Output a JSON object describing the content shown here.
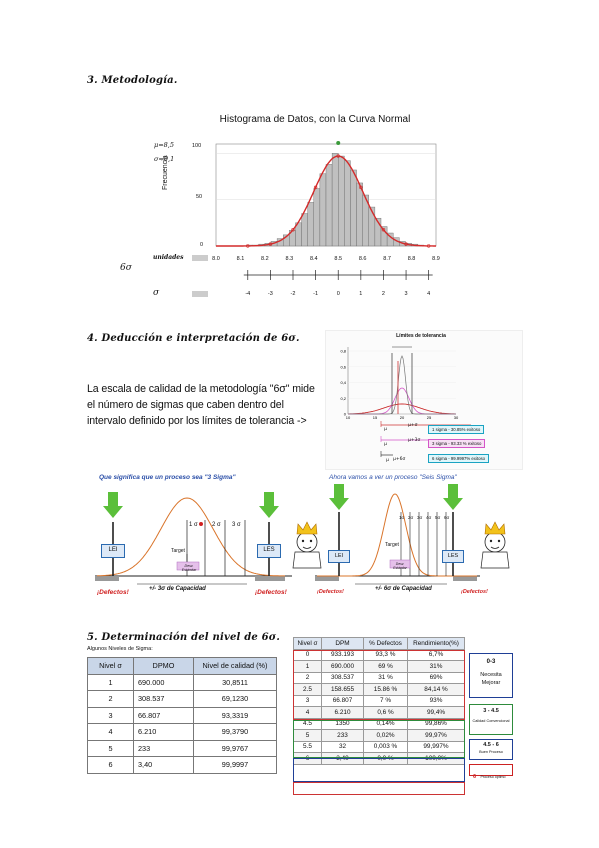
{
  "section3": {
    "title": "3. Metodología."
  },
  "histogram": {
    "title": "Histograma de Datos, con la Curva Normal",
    "mu": "μ=8,5",
    "sigma": "σ=0,1",
    "ylabel": "Frecuencia",
    "yticks": [
      "100",
      "50",
      "0"
    ],
    "units_label": "unidades",
    "xticks": [
      "8.0",
      "8.1",
      "8.2",
      "8.3",
      "8.4",
      "8.5",
      "8.6",
      "8.7",
      "8.8",
      "8.9"
    ],
    "six_sigma_label": "6σ",
    "sigma_label": "σ",
    "sigma_ticks": [
      "-4",
      "-3",
      "-2",
      "-1",
      "0",
      "1",
      "2",
      "3",
      "4"
    ],
    "bar_color": "#c0c0c0",
    "curve_color": "#d42a2a"
  },
  "chart_data": {
    "type": "bar",
    "title": "Histograma de Datos, con la Curva Normal",
    "xlabel": "unidades",
    "ylabel": "Frecuencia",
    "ylim": [
      0,
      110
    ],
    "xlim": [
      8.0,
      8.9
    ],
    "bin_width": 0.025,
    "bin_starts": [
      8.125,
      8.15,
      8.175,
      8.2,
      8.225,
      8.25,
      8.275,
      8.3,
      8.325,
      8.35,
      8.375,
      8.4,
      8.425,
      8.45,
      8.475,
      8.5,
      8.525,
      8.55,
      8.575,
      8.6,
      8.625,
      8.65,
      8.675,
      8.7,
      8.725,
      8.75,
      8.775,
      8.8,
      8.825
    ],
    "values": [
      1,
      1,
      2,
      3,
      5,
      8,
      12,
      17,
      25,
      35,
      47,
      62,
      78,
      88,
      100,
      97,
      92,
      82,
      68,
      55,
      42,
      30,
      21,
      14,
      9,
      5,
      3,
      2,
      1
    ],
    "curve": {
      "name": "Curva Normal",
      "mean": 8.5,
      "sd": 0.1,
      "peak": 97
    }
  },
  "section4": {
    "title": "4. Deducción e interpretación de 6σ.",
    "paragraph": [
      "La escala de calidad de la metodología \"6σ\" mide",
      "el número de sigmas que caben dentro del",
      "intervalo definido por los límites de tolerancia ->"
    ]
  },
  "tolerance_chart": {
    "title": "Límites de tolerancia",
    "yticks": [
      "0,8",
      "0,6",
      "0,4",
      "0,2",
      "0"
    ],
    "xticks": [
      "10",
      "15",
      "20",
      "25",
      "30"
    ],
    "legend": [
      "1 sigma - 30.85% exitoso",
      "3 sigma - 93.33 % exitoso",
      "6 sigma - 99.9997% exitoso"
    ],
    "markers": [
      "μ",
      "μ+σ",
      "μ",
      "μ+3σ",
      "μ",
      "μ+6σ"
    ]
  },
  "three_sigma": {
    "title": "Que significa que un proceso sea \"3 Sigma\"",
    "lei": "LEI",
    "les": "LES",
    "target": "Target",
    "one_sigma": "1 σ",
    "two_sigma": "2 σ",
    "three_sigma": "3 σ",
    "center_tag": "Desv. Estándar",
    "capacity": "+/- 3σ de Capacidad",
    "defects_left": "¡Defectos!",
    "defects_right": "¡Defectos!"
  },
  "six_sigma": {
    "title": "Ahora vamos a ver un proceso \"Seis Sigma\"",
    "lei": "LEI",
    "les": "LES",
    "target": "Target",
    "sigmas": [
      "1σ",
      "2σ",
      "3σ",
      "4σ",
      "5σ",
      "6σ"
    ],
    "center_tag": "Desv. Estándar",
    "capacity": "+/- 6σ de Capacidad",
    "defects_left": "¡Defectos!",
    "defects_right": "¡Defectos!"
  },
  "section5": {
    "title": "5. Determinación del nivel de 6σ.",
    "table1": {
      "caption": "Algunos Niveles de Sigma:",
      "headers": [
        "Nivel σ",
        "DPMO",
        "Nivel de calidad (%)"
      ],
      "rows": [
        [
          "1",
          "690.000",
          "30,8511"
        ],
        [
          "2",
          "308.537",
          "69,1230"
        ],
        [
          "3",
          "66.807",
          "93,3319"
        ],
        [
          "4",
          "6.210",
          "99,3790"
        ],
        [
          "5",
          "233",
          "99,9767"
        ],
        [
          "6",
          "3,40",
          "99,9997"
        ]
      ]
    },
    "table2": {
      "headers": [
        "Nivel σ",
        "DPM",
        "% Defectos",
        "Rendimiento(%)"
      ],
      "rows": [
        [
          "0",
          "933.193",
          "93,3 %",
          "6,7%"
        ],
        [
          "1",
          "690.000",
          "69 %",
          "31%"
        ],
        [
          "2",
          "308.537",
          "31 %",
          "69%"
        ],
        [
          "2.5",
          "158.655",
          "15.86 %",
          "84,14 %"
        ],
        [
          "3",
          "66.807",
          "7 %",
          "93%"
        ],
        [
          "4",
          "6.210",
          "0,6 %",
          "99,4%"
        ],
        [
          "4.5",
          "1350",
          "0,14%",
          "99,86%"
        ],
        [
          "5",
          "233",
          "0,02%",
          "99,97%"
        ],
        [
          "5.5",
          "32",
          "0,003 %",
          "99,997%"
        ],
        [
          "6",
          "3,40",
          "0,0 %",
          "100,0%"
        ]
      ]
    },
    "legend_boxes": [
      {
        "range": "0-3",
        "label": "Necesita Mejorar",
        "color": "#1f3f96"
      },
      {
        "range": "3 - 4.5",
        "label": "Calidad Convencional",
        "color": "#2e8b3c"
      },
      {
        "range": "4.5 - 6",
        "label": "Buen Proceso",
        "color": "#1f3f96"
      },
      {
        "range": "6",
        "label": "Proceso óptimo",
        "color": "#cc2222"
      }
    ]
  }
}
